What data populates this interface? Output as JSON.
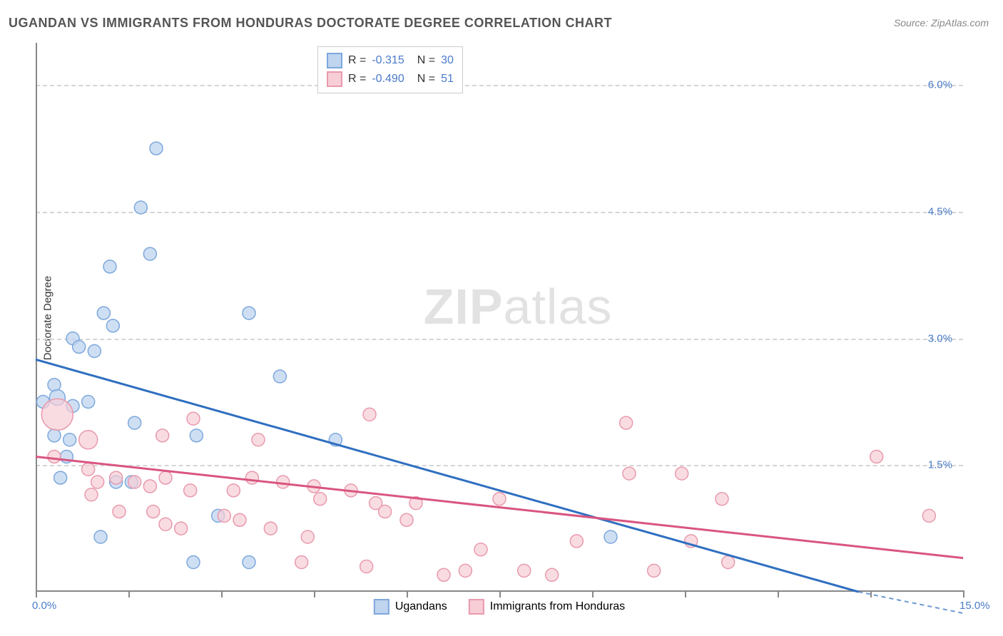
{
  "title": "UGANDAN VS IMMIGRANTS FROM HONDURAS DOCTORATE DEGREE CORRELATION CHART",
  "source": "Source: ZipAtlas.com",
  "watermark_bold": "ZIP",
  "watermark_light": "atlas",
  "y_axis_label": "Doctorate Degree",
  "chart": {
    "type": "scatter",
    "background_color": "#ffffff",
    "grid_color": "#d5d5d5",
    "axis_color": "#888888",
    "text_color": "#333333",
    "tick_label_color": "#4a7bc8",
    "xlim": [
      0,
      15
    ],
    "ylim": [
      0,
      6.5
    ],
    "y_ticks": [
      {
        "value": 1.5,
        "label": "1.5%"
      },
      {
        "value": 3.0,
        "label": "3.0%"
      },
      {
        "value": 4.5,
        "label": "4.5%"
      },
      {
        "value": 6.0,
        "label": "6.0%"
      }
    ],
    "x_ticks": [
      {
        "value": 0,
        "label": "0.0%"
      },
      {
        "value": 1.5,
        "label": ""
      },
      {
        "value": 3.0,
        "label": ""
      },
      {
        "value": 4.5,
        "label": ""
      },
      {
        "value": 6.0,
        "label": ""
      },
      {
        "value": 7.5,
        "label": ""
      },
      {
        "value": 9.0,
        "label": ""
      },
      {
        "value": 10.5,
        "label": ""
      },
      {
        "value": 12.0,
        "label": ""
      },
      {
        "value": 13.5,
        "label": ""
      },
      {
        "value": 15.0,
        "label": "15.0%"
      }
    ],
    "series": [
      {
        "name": "Ugandans",
        "marker_fill": "#bfd4ef",
        "marker_stroke": "#7da8dc",
        "marker_opacity": 0.75,
        "line_color": "#2f6fc0",
        "line_width": 3,
        "r_label": "R =",
        "r_value": "-0.315",
        "n_label": "N =",
        "n_value": "30",
        "points": [
          {
            "x": 1.95,
            "y": 5.25,
            "r": 9
          },
          {
            "x": 1.7,
            "y": 4.55,
            "r": 9
          },
          {
            "x": 1.85,
            "y": 4.0,
            "r": 9
          },
          {
            "x": 1.2,
            "y": 3.85,
            "r": 9
          },
          {
            "x": 3.45,
            "y": 3.3,
            "r": 9
          },
          {
            "x": 1.1,
            "y": 3.3,
            "r": 9
          },
          {
            "x": 1.25,
            "y": 3.15,
            "r": 9
          },
          {
            "x": 0.6,
            "y": 3.0,
            "r": 9
          },
          {
            "x": 0.7,
            "y": 2.9,
            "r": 9
          },
          {
            "x": 0.95,
            "y": 2.85,
            "r": 9
          },
          {
            "x": 3.95,
            "y": 2.55,
            "r": 9
          },
          {
            "x": 0.3,
            "y": 2.45,
            "r": 9
          },
          {
            "x": 0.35,
            "y": 2.3,
            "r": 11
          },
          {
            "x": 0.85,
            "y": 2.25,
            "r": 9
          },
          {
            "x": 1.6,
            "y": 2.0,
            "r": 9
          },
          {
            "x": 0.3,
            "y": 1.85,
            "r": 9
          },
          {
            "x": 2.6,
            "y": 1.85,
            "r": 9
          },
          {
            "x": 4.85,
            "y": 1.8,
            "r": 9
          },
          {
            "x": 0.55,
            "y": 1.8,
            "r": 9
          },
          {
            "x": 0.5,
            "y": 1.6,
            "r": 9
          },
          {
            "x": 0.4,
            "y": 1.35,
            "r": 9
          },
          {
            "x": 1.3,
            "y": 1.3,
            "r": 9
          },
          {
            "x": 1.55,
            "y": 1.3,
            "r": 9
          },
          {
            "x": 2.95,
            "y": 0.9,
            "r": 9
          },
          {
            "x": 1.05,
            "y": 0.65,
            "r": 9
          },
          {
            "x": 2.55,
            "y": 0.35,
            "r": 9
          },
          {
            "x": 3.45,
            "y": 0.35,
            "r": 9
          },
          {
            "x": 9.3,
            "y": 0.65,
            "r": 9
          },
          {
            "x": 0.12,
            "y": 2.25,
            "r": 9
          },
          {
            "x": 0.6,
            "y": 2.2,
            "r": 9
          }
        ],
        "trendline": {
          "x1": 0,
          "y1": 2.75,
          "x2": 15,
          "y2": -0.35
        }
      },
      {
        "name": "Immigrants from Honduras",
        "marker_fill": "#f7cdd6",
        "marker_stroke": "#e89aad",
        "marker_opacity": 0.7,
        "line_color": "#d95580",
        "line_width": 3,
        "r_label": "R =",
        "r_value": "-0.490",
        "n_label": "N =",
        "n_value": "51",
        "points": [
          {
            "x": 0.35,
            "y": 2.1,
            "r": 22
          },
          {
            "x": 0.85,
            "y": 1.8,
            "r": 13
          },
          {
            "x": 5.4,
            "y": 2.1,
            "r": 9
          },
          {
            "x": 2.55,
            "y": 2.05,
            "r": 9
          },
          {
            "x": 9.55,
            "y": 2.0,
            "r": 9
          },
          {
            "x": 0.3,
            "y": 1.6,
            "r": 9
          },
          {
            "x": 2.05,
            "y": 1.85,
            "r": 9
          },
          {
            "x": 3.6,
            "y": 1.8,
            "r": 9
          },
          {
            "x": 13.6,
            "y": 1.6,
            "r": 9
          },
          {
            "x": 0.85,
            "y": 1.45,
            "r": 9
          },
          {
            "x": 1.0,
            "y": 1.3,
            "r": 9
          },
          {
            "x": 1.3,
            "y": 1.35,
            "r": 9
          },
          {
            "x": 1.6,
            "y": 1.3,
            "r": 9
          },
          {
            "x": 1.85,
            "y": 1.25,
            "r": 9
          },
          {
            "x": 2.1,
            "y": 1.35,
            "r": 9
          },
          {
            "x": 2.5,
            "y": 1.2,
            "r": 9
          },
          {
            "x": 3.5,
            "y": 1.35,
            "r": 9
          },
          {
            "x": 3.2,
            "y": 1.2,
            "r": 9
          },
          {
            "x": 4.0,
            "y": 1.3,
            "r": 9
          },
          {
            "x": 4.5,
            "y": 1.25,
            "r": 9
          },
          {
            "x": 4.6,
            "y": 1.1,
            "r": 9
          },
          {
            "x": 5.1,
            "y": 1.2,
            "r": 9
          },
          {
            "x": 5.5,
            "y": 1.05,
            "r": 9
          },
          {
            "x": 5.65,
            "y": 0.95,
            "r": 9
          },
          {
            "x": 6.0,
            "y": 0.85,
            "r": 9
          },
          {
            "x": 6.15,
            "y": 1.05,
            "r": 9
          },
          {
            "x": 7.5,
            "y": 1.1,
            "r": 9
          },
          {
            "x": 9.6,
            "y": 1.4,
            "r": 9
          },
          {
            "x": 10.45,
            "y": 1.4,
            "r": 9
          },
          {
            "x": 11.1,
            "y": 1.1,
            "r": 9
          },
          {
            "x": 14.45,
            "y": 0.9,
            "r": 9
          },
          {
            "x": 7.2,
            "y": 0.5,
            "r": 9
          },
          {
            "x": 8.75,
            "y": 0.6,
            "r": 9
          },
          {
            "x": 10.6,
            "y": 0.6,
            "r": 9
          },
          {
            "x": 11.2,
            "y": 0.35,
            "r": 9
          },
          {
            "x": 10.0,
            "y": 0.25,
            "r": 9
          },
          {
            "x": 8.35,
            "y": 0.2,
            "r": 9
          },
          {
            "x": 7.9,
            "y": 0.25,
            "r": 9
          },
          {
            "x": 6.6,
            "y": 0.2,
            "r": 9
          },
          {
            "x": 6.95,
            "y": 0.25,
            "r": 9
          },
          {
            "x": 5.35,
            "y": 0.3,
            "r": 9
          },
          {
            "x": 4.3,
            "y": 0.35,
            "r": 9
          },
          {
            "x": 4.4,
            "y": 0.65,
            "r": 9
          },
          {
            "x": 3.8,
            "y": 0.75,
            "r": 9
          },
          {
            "x": 3.05,
            "y": 0.9,
            "r": 9
          },
          {
            "x": 3.3,
            "y": 0.85,
            "r": 9
          },
          {
            "x": 2.35,
            "y": 0.75,
            "r": 9
          },
          {
            "x": 2.1,
            "y": 0.8,
            "r": 9
          },
          {
            "x": 1.9,
            "y": 0.95,
            "r": 9
          },
          {
            "x": 1.35,
            "y": 0.95,
            "r": 9
          },
          {
            "x": 0.9,
            "y": 1.15,
            "r": 9
          }
        ],
        "trendline": {
          "x1": 0,
          "y1": 1.6,
          "x2": 15,
          "y2": 0.4
        }
      }
    ]
  },
  "legend_bottom": [
    {
      "label": "Ugandans",
      "fill": "#bfd4ef",
      "stroke": "#7da8dc"
    },
    {
      "label": "Immigrants from Honduras",
      "fill": "#f7cdd6",
      "stroke": "#e89aad"
    }
  ]
}
